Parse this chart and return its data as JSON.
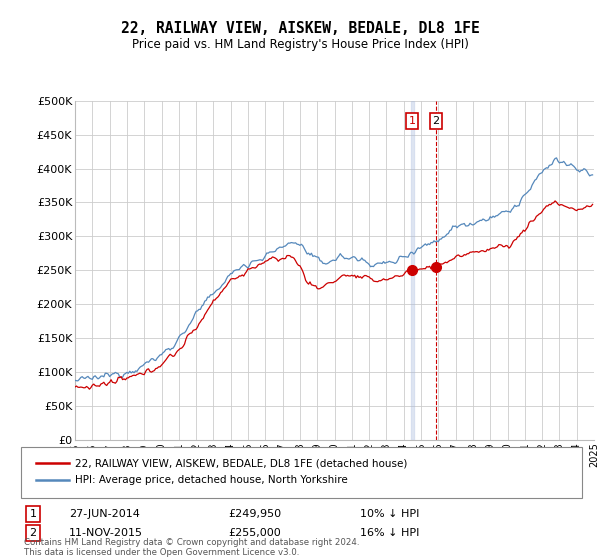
{
  "title": "22, RAILWAY VIEW, AISKEW, BEDALE, DL8 1FE",
  "subtitle": "Price paid vs. HM Land Registry's House Price Index (HPI)",
  "ylabel_ticks": [
    "£0",
    "£50K",
    "£100K",
    "£150K",
    "£200K",
    "£250K",
    "£300K",
    "£350K",
    "£400K",
    "£450K",
    "£500K"
  ],
  "ylim": [
    0,
    500000
  ],
  "ytick_values": [
    0,
    50000,
    100000,
    150000,
    200000,
    250000,
    300000,
    350000,
    400000,
    450000,
    500000
  ],
  "red_line_color": "#cc0000",
  "blue_line_color": "#5588bb",
  "sale1_x": 2014.49,
  "sale1_y": 249950,
  "sale2_x": 2015.86,
  "sale2_y": 255000,
  "legend_label_red": "22, RAILWAY VIEW, AISKEW, BEDALE, DL8 1FE (detached house)",
  "legend_label_blue": "HPI: Average price, detached house, North Yorkshire",
  "transaction1_text": "27-JUN-2014",
  "transaction1_price": "£249,950",
  "transaction1_hpi": "10% ↓ HPI",
  "transaction2_text": "11-NOV-2015",
  "transaction2_price": "£255,000",
  "transaction2_hpi": "16% ↓ HPI",
  "footer": "Contains HM Land Registry data © Crown copyright and database right 2024.\nThis data is licensed under the Open Government Licence v3.0.",
  "background_color": "#ffffff",
  "grid_color": "#cccccc",
  "xmin": 1995,
  "xmax": 2025
}
